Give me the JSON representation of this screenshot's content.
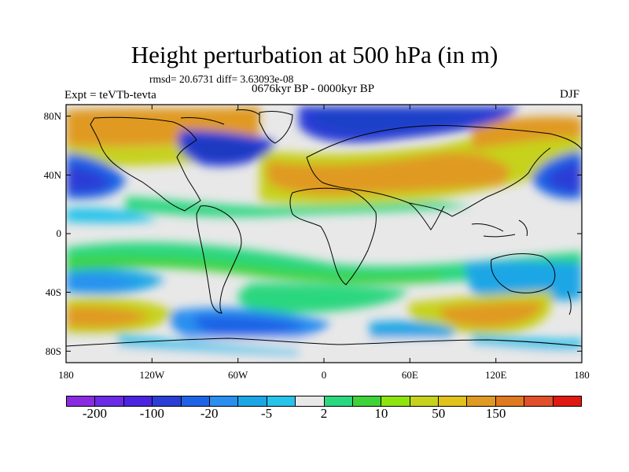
{
  "figure": {
    "title": "Height perturbation at 500 hPa (in m)",
    "stats": "rmsd= 20.6731 diff= 3.63093e-08",
    "period": "0676kyr BP - 0000kyr BP",
    "experiment": "Expt = teVTb-tevta",
    "season": "DJF"
  },
  "axes": {
    "lat_ticks": [
      "80N",
      "40N",
      "0",
      "40S",
      "80S"
    ],
    "lon_ticks": [
      "180",
      "120W",
      "60W",
      "0",
      "60E",
      "120E",
      "180"
    ]
  },
  "colorbar": {
    "colors": [
      "#8a2be2",
      "#6a2ae6",
      "#4b24e0",
      "#2a3ed6",
      "#1d63e6",
      "#2a8ff0",
      "#1ba6e6",
      "#27c3ea",
      "#e8e8e8",
      "#2bd77f",
      "#3fd33a",
      "#8ee40f",
      "#c6d21b",
      "#e0c21a",
      "#e09a22",
      "#e07a20",
      "#e1502a",
      "#e01a12"
    ],
    "labels": [
      "-200",
      "-100",
      "-20",
      "-5",
      "2",
      "10",
      "50",
      "150"
    ]
  },
  "palette": {
    "ocean_neutral": "#e8e8e8",
    "strong_neg": "#1f3fc8",
    "neg": "#2a8ff0",
    "weak_neg": "#27c3ea",
    "weak_pos": "#2bd77f",
    "pos": "#3fd33a",
    "strong_pos": "#c6d21b",
    "very_strong_pos": "#e09a22"
  }
}
